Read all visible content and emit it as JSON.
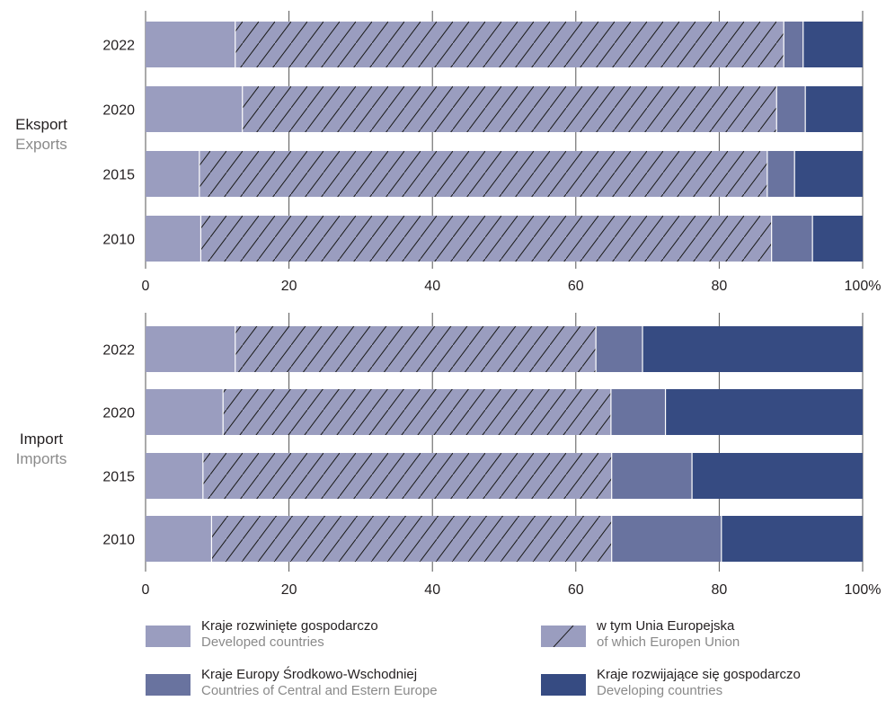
{
  "chart_data": {
    "type": "bar",
    "orientation": "horizontal",
    "stacked": true,
    "unit": "%",
    "xlim": [
      0,
      100
    ],
    "x_ticks": [
      "0",
      "20",
      "40",
      "60",
      "80",
      "100%"
    ],
    "grid": true,
    "legend_position": "bottom",
    "series_colors": {
      "developed_other": "#9a9dbf",
      "eu": "#9a9dbf",
      "cee": "#69739f",
      "developing": "#364b82"
    },
    "legend": [
      {
        "key": "developed_other",
        "pl": "Kraje rozwinięte gospodarczo",
        "en": "Developed countries",
        "pattern": "solid"
      },
      {
        "key": "eu",
        "pl": "w tym Unia Europejska",
        "en": "of which Europen Union",
        "pattern": "hatched"
      },
      {
        "key": "cee",
        "pl": "Kraje Europy Środkowo-Wschodniej",
        "en": "Countries of Central and Estern Europe",
        "pattern": "solid"
      },
      {
        "key": "developing",
        "pl": "Kraje rozwijające się gospodarczo",
        "en": "Developing countries",
        "pattern": "solid"
      }
    ],
    "panels": [
      {
        "name_pl": "Eksport",
        "name_en": "Exports",
        "categories": [
          "2022",
          "2020",
          "2015",
          "2010"
        ],
        "series": [
          {
            "key": "developed_other",
            "values": [
              12.5,
              13.5,
              7.5,
              7.7
            ]
          },
          {
            "key": "eu",
            "values": [
              76.5,
              74.5,
              79.2,
              79.6
            ]
          },
          {
            "key": "cee",
            "values": [
              2.7,
              4.0,
              3.8,
              5.7
            ]
          },
          {
            "key": "developing",
            "values": [
              8.3,
              8.0,
              9.5,
              7.0
            ]
          }
        ]
      },
      {
        "name_pl": "Import",
        "name_en": "Imports",
        "categories": [
          "2022",
          "2020",
          "2015",
          "2010"
        ],
        "series": [
          {
            "key": "developed_other",
            "values": [
              12.5,
              10.8,
              8.0,
              9.2
            ]
          },
          {
            "key": "eu",
            "values": [
              50.3,
              54.1,
              57.0,
              55.8
            ]
          },
          {
            "key": "cee",
            "values": [
              6.5,
              7.6,
              11.2,
              15.3
            ]
          },
          {
            "key": "developing",
            "values": [
              30.7,
              27.5,
              23.8,
              19.7
            ]
          }
        ]
      }
    ]
  }
}
